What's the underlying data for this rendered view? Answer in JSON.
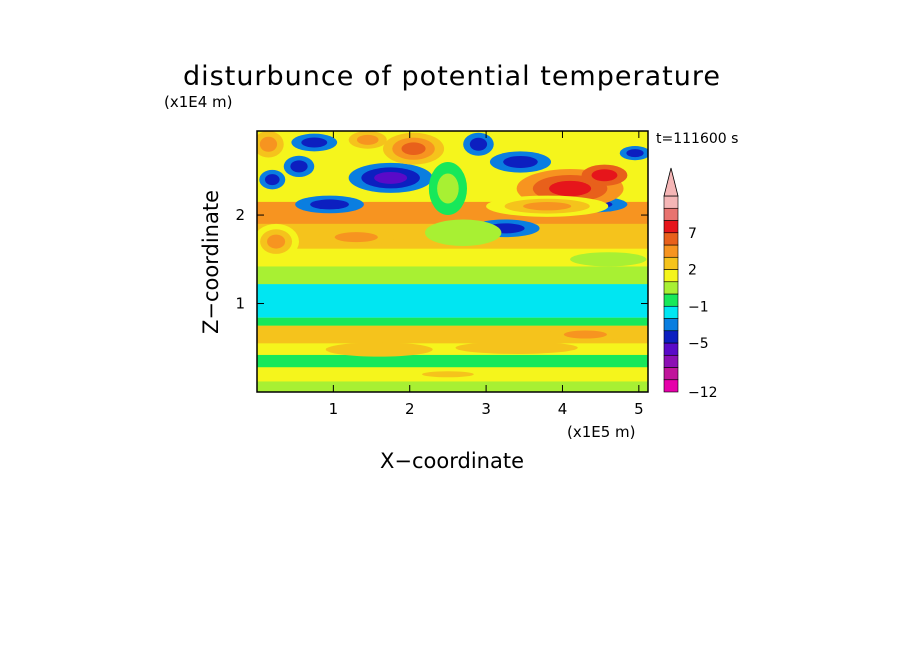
{
  "chart_data": {
    "type": "heatmap",
    "title": "disturbunce of potential temperature",
    "xlabel": "X−coordinate",
    "ylabel": "Z−coordinate",
    "x_units": "(x1E5 m)",
    "y_units": "(x1E4 m)",
    "time_label": "t=111600 s",
    "x_ticks": [
      "1",
      "2",
      "3",
      "4",
      "5"
    ],
    "y_ticks": [
      "1",
      "2"
    ],
    "xlim": [
      0,
      5.12
    ],
    "ylim": [
      0,
      2.95
    ],
    "grid": false,
    "colorbar": {
      "placement": "right",
      "labels": [
        "7",
        "2",
        "−1",
        "−5",
        "−12"
      ],
      "levels": [
        {
          "bin": "<= -12",
          "color": "#e600aa"
        },
        {
          "bin": "-12 .. -9",
          "color": "#c0159b"
        },
        {
          "bin": "-9 .. -7",
          "color": "#8c0fb4"
        },
        {
          "bin": "-7 .. -5",
          "color": "#5a0ac8"
        },
        {
          "bin": "-5 .. -3",
          "color": "#0c1fc0"
        },
        {
          "bin": "-3 .. -2",
          "color": "#0a7ee0"
        },
        {
          "bin": "-2 .. -1",
          "color": "#00e6f2"
        },
        {
          "bin": "-1 .. 0",
          "color": "#17e85a"
        },
        {
          "bin": "0 .. 1",
          "color": "#a8f033"
        },
        {
          "bin": "1 .. 2",
          "color": "#f5f51c"
        },
        {
          "bin": "2 .. 3",
          "color": "#f5c31c"
        },
        {
          "bin": "3 .. 5",
          "color": "#f79420"
        },
        {
          "bin": "5 .. 7",
          "color": "#e8601b"
        },
        {
          "bin": "7 .. 9",
          "color": "#e6151b"
        },
        {
          "bin": "9 .. 11",
          "color": "#e8736f"
        },
        {
          "bin": ">= 11",
          "color": "#f5b6b6"
        }
      ]
    },
    "bands": [
      {
        "z": [
          0.0,
          0.12
        ],
        "level": 8
      },
      {
        "z": [
          0.12,
          0.28
        ],
        "level": 9
      },
      {
        "z": [
          0.28,
          0.42
        ],
        "level": 7
      },
      {
        "z": [
          0.42,
          0.55
        ],
        "level": 9
      },
      {
        "z": [
          0.55,
          0.75
        ],
        "level": 10
      },
      {
        "z": [
          0.75,
          0.84
        ],
        "level": 7
      },
      {
        "z": [
          0.84,
          1.22
        ],
        "level": 6
      },
      {
        "z": [
          1.22,
          1.42
        ],
        "level": 8
      },
      {
        "z": [
          1.42,
          1.62
        ],
        "level": 9
      },
      {
        "z": [
          1.62,
          1.9
        ],
        "level": 10
      },
      {
        "z": [
          1.9,
          2.15
        ],
        "level": 11
      },
      {
        "z": [
          2.15,
          2.5
        ],
        "level": 9
      },
      {
        "z": [
          2.5,
          2.95
        ],
        "level": 9
      }
    ],
    "blobs": [
      {
        "x": 1.75,
        "z": 2.42,
        "rx": 0.55,
        "rz": 0.17,
        "levels": [
          5,
          4,
          3
        ]
      },
      {
        "x": 0.95,
        "z": 2.12,
        "rx": 0.45,
        "rz": 0.1,
        "levels": [
          5,
          4
        ]
      },
      {
        "x": 0.55,
        "z": 2.55,
        "rx": 0.2,
        "rz": 0.12,
        "levels": [
          5,
          4
        ]
      },
      {
        "x": 0.2,
        "z": 2.4,
        "rx": 0.17,
        "rz": 0.11,
        "levels": [
          5,
          4
        ]
      },
      {
        "x": 0.75,
        "z": 2.82,
        "rx": 0.3,
        "rz": 0.1,
        "levels": [
          5,
          4
        ]
      },
      {
        "x": 2.9,
        "z": 2.8,
        "rx": 0.2,
        "rz": 0.13,
        "levels": [
          5,
          4
        ]
      },
      {
        "x": 3.45,
        "z": 2.6,
        "rx": 0.4,
        "rz": 0.12,
        "levels": [
          5,
          4
        ]
      },
      {
        "x": 3.25,
        "z": 1.85,
        "rx": 0.45,
        "rz": 0.1,
        "levels": [
          5,
          4
        ]
      },
      {
        "x": 4.4,
        "z": 2.12,
        "rx": 0.45,
        "rz": 0.09,
        "levels": [
          5,
          4
        ]
      },
      {
        "x": 4.95,
        "z": 2.7,
        "rx": 0.2,
        "rz": 0.08,
        "levels": [
          5,
          4
        ]
      },
      {
        "x": 4.1,
        "z": 2.3,
        "rx": 0.7,
        "rz": 0.22,
        "levels": [
          11,
          12,
          13
        ]
      },
      {
        "x": 4.55,
        "z": 2.45,
        "rx": 0.3,
        "rz": 0.12,
        "levels": [
          12,
          13
        ]
      },
      {
        "x": 2.05,
        "z": 2.75,
        "rx": 0.4,
        "rz": 0.18,
        "levels": [
          10,
          11,
          12
        ]
      },
      {
        "x": 1.45,
        "z": 2.85,
        "rx": 0.25,
        "rz": 0.1,
        "levels": [
          10,
          11
        ]
      },
      {
        "x": 0.15,
        "z": 2.8,
        "rx": 0.2,
        "rz": 0.15,
        "levels": [
          10,
          11
        ]
      },
      {
        "x": 3.8,
        "z": 2.1,
        "rx": 0.8,
        "rz": 0.12,
        "levels": [
          9,
          10,
          11
        ]
      },
      {
        "x": 0.25,
        "z": 1.7,
        "rx": 0.3,
        "rz": 0.2,
        "levels": [
          9,
          10,
          11
        ]
      },
      {
        "x": 1.3,
        "z": 1.75,
        "rx": 0.5,
        "rz": 0.1,
        "levels": [
          10,
          11
        ]
      },
      {
        "x": 2.5,
        "z": 2.3,
        "rx": 0.25,
        "rz": 0.3,
        "levels": [
          7,
          8
        ]
      },
      {
        "x": 2.7,
        "z": 1.8,
        "rx": 0.5,
        "rz": 0.15,
        "levels": [
          8
        ]
      },
      {
        "x": 4.6,
        "z": 1.5,
        "rx": 0.5,
        "rz": 0.08,
        "levels": [
          8
        ]
      },
      {
        "x": 1.6,
        "z": 0.48,
        "rx": 0.7,
        "rz": 0.08,
        "levels": [
          10
        ]
      },
      {
        "x": 3.4,
        "z": 0.5,
        "rx": 0.8,
        "rz": 0.07,
        "levels": [
          10
        ]
      },
      {
        "x": 2.5,
        "z": 0.2,
        "rx": 0.6,
        "rz": 0.06,
        "levels": [
          9,
          10
        ]
      },
      {
        "x": 4.3,
        "z": 0.65,
        "rx": 0.5,
        "rz": 0.08,
        "levels": [
          10,
          11
        ]
      }
    ]
  }
}
